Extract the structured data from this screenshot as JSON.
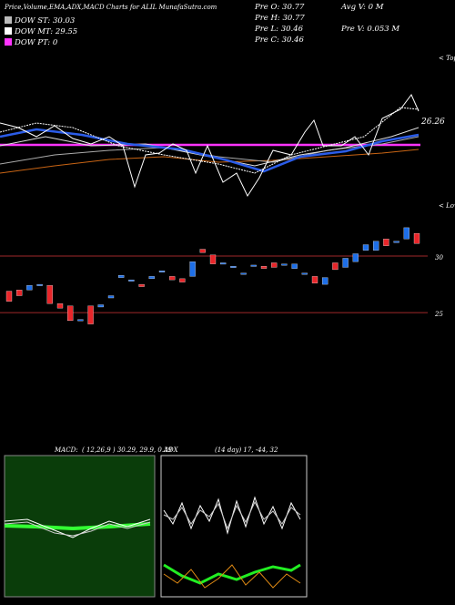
{
  "header": {
    "title": "Price,Volume,EMA,ADX,MACD Charts for ALIL MunafaSutra.com",
    "legend": [
      "DOW ST: 30.03",
      "DOW MT: 29.55",
      "DOW PT: 0"
    ],
    "legend_colors": [
      "#bbbbbb",
      "#ffffff",
      "#ff33ff"
    ],
    "stats_left": [
      "Pre O: 30.77",
      "Pre H: 30.77",
      "Pre L: 30.46",
      "Pre C: 30.46"
    ],
    "stats_right": [
      "Avg V: 0 M",
      "Pre V: 0.053 M"
    ]
  },
  "ema_panel": {
    "marker": "< Tops",
    "label": "26.26"
  },
  "chart_data": {
    "type": "candlestick",
    "marker": "< Lows",
    "up_color": "#1e6fe8",
    "down_color": "#e8262a",
    "ylim": [
      14,
      34.1
    ],
    "yticks": [
      30,
      25
    ],
    "candles": [
      {
        "o": 26.9,
        "c": 26.0
      },
      {
        "o": 27.0,
        "c": 26.5
      },
      {
        "o": 27.0,
        "c": 27.4
      },
      {
        "o": 27.5,
        "c": 27.5
      },
      {
        "o": 27.4,
        "c": 25.8
      },
      {
        "o": 25.8,
        "c": 25.4
      },
      {
        "o": 25.6,
        "c": 24.3
      },
      {
        "o": 24.4,
        "c": 24.4
      },
      {
        "o": 25.6,
        "c": 24.0
      },
      {
        "o": 25.5,
        "c": 25.7
      },
      {
        "o": 26.3,
        "c": 26.5
      },
      {
        "o": 28.1,
        "c": 28.3
      },
      {
        "o": 27.9,
        "c": 27.9
      },
      {
        "o": 27.5,
        "c": 27.3
      },
      {
        "o": 28.0,
        "c": 28.2
      },
      {
        "o": 28.6,
        "c": 28.7
      },
      {
        "o": 28.2,
        "c": 27.9
      },
      {
        "o": 28.0,
        "c": 27.7
      },
      {
        "o": 28.2,
        "c": 29.5
      },
      {
        "o": 30.6,
        "c": 30.3
      },
      {
        "o": 30.1,
        "c": 29.3
      },
      {
        "o": 29.4,
        "c": 29.4
      },
      {
        "o": 29.0,
        "c": 29.1
      },
      {
        "o": 28.5,
        "c": 28.5
      },
      {
        "o": 29.1,
        "c": 29.2
      },
      {
        "o": 29.1,
        "c": 28.9
      },
      {
        "o": 29.4,
        "c": 29.0
      },
      {
        "o": 29.2,
        "c": 29.3
      },
      {
        "o": 28.9,
        "c": 29.3
      },
      {
        "o": 28.5,
        "c": 28.5
      },
      {
        "o": 28.2,
        "c": 27.6
      },
      {
        "o": 27.5,
        "c": 28.1
      },
      {
        "o": 29.4,
        "c": 28.8
      },
      {
        "o": 29.0,
        "c": 29.8
      },
      {
        "o": 29.5,
        "c": 30.2
      },
      {
        "o": 30.5,
        "c": 31.0
      },
      {
        "o": 30.5,
        "c": 31.3
      },
      {
        "o": 31.5,
        "c": 30.9
      },
      {
        "o": 31.3,
        "c": 31.3
      },
      {
        "o": 31.5,
        "c": 32.5
      },
      {
        "o": 32.0,
        "c": 31.1
      }
    ]
  },
  "macd_panel": {
    "name": "MACD:",
    "params": "( 12,26,9 ) 30.29, 29.9, 0.39"
  },
  "adx_panel": {
    "name": "ADX",
    "params": "(14 day) 17, -44, 32"
  }
}
